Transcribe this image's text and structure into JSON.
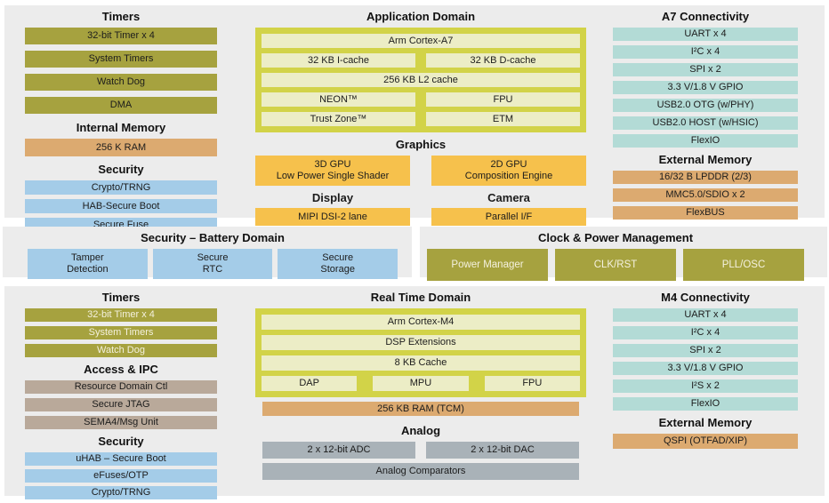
{
  "colors": {
    "panel_bg": "#ececec",
    "olive": "#a6a23f",
    "memory": "#dcaa70",
    "blue": "#a4cce8",
    "teal": "#b3dbd6",
    "lime": "#d2d348",
    "pale": "#ecedc6",
    "graphics_orange": "#f6c14c",
    "tan": "#b9a99a",
    "gray": "#a9b2b8",
    "white_text": "#f4f1de"
  },
  "panels": {
    "top_left": {
      "sections": [
        {
          "name": "timers",
          "heading": "Timers",
          "rows": [
            {
              "cells": [
                {
                  "text": "32-bit Timer x 4",
                  "style": "olive"
                }
              ]
            },
            {
              "cells": [
                {
                  "text": "System Timers",
                  "style": "olive"
                }
              ]
            },
            {
              "cells": [
                {
                  "text": "Watch Dog",
                  "style": "olive"
                }
              ]
            },
            {
              "cells": [
                {
                  "text": "DMA",
                  "style": "olive"
                }
              ]
            }
          ]
        },
        {
          "name": "internal-memory",
          "heading": "Internal Memory",
          "rows": [
            {
              "cells": [
                {
                  "text": "256 K RAM",
                  "style": "memory"
                }
              ]
            }
          ]
        },
        {
          "name": "security",
          "heading": "Security",
          "rows": [
            {
              "cells": [
                {
                  "text": "Crypto/TRNG",
                  "style": "blue"
                }
              ]
            },
            {
              "cells": [
                {
                  "text": "HAB-Secure Boot",
                  "style": "blue"
                }
              ]
            },
            {
              "cells": [
                {
                  "text": "Secure Fuse",
                  "style": "blue"
                }
              ]
            }
          ]
        }
      ]
    },
    "top_mid": {
      "sections": [
        {
          "name": "application-domain",
          "heading": "Application Domain",
          "domain": true,
          "rows": [
            {
              "cells": [
                {
                  "text": "Arm Cortex-A7",
                  "style": "pale"
                }
              ]
            },
            {
              "cells": [
                {
                  "text": "32 KB I-cache",
                  "style": "pale"
                },
                {
                  "text": "32 KB D-cache",
                  "style": "pale"
                }
              ]
            },
            {
              "cells": [
                {
                  "text": "256 KB L2 cache",
                  "style": "pale"
                }
              ]
            },
            {
              "cells": [
                {
                  "text": "NEON™",
                  "style": "pale"
                },
                {
                  "text": "FPU",
                  "style": "pale"
                }
              ]
            },
            {
              "cells": [
                {
                  "text": "Trust Zone™",
                  "style": "pale"
                },
                {
                  "text": "ETM",
                  "style": "pale"
                }
              ]
            }
          ]
        },
        {
          "name": "graphics",
          "heading": "Graphics",
          "rows": [
            {
              "cells": [
                {
                  "lines": [
                    "3D GPU",
                    "Low Power Single Shader"
                  ],
                  "style": "graphics"
                },
                {
                  "lines": [
                    "2D GPU",
                    "Composition Engine"
                  ],
                  "style": "graphics"
                }
              ]
            }
          ]
        },
        {
          "name": "display-camera",
          "heading": "",
          "rows": [
            {
              "subheads": true,
              "cells": [
                {
                  "text": "Display",
                  "style": "subhead"
                },
                {
                  "text": "Camera",
                  "style": "subhead"
                }
              ]
            },
            {
              "cells": [
                {
                  "text": "MIPI DSI-2 lane",
                  "style": "graphics"
                },
                {
                  "text": "Parallel I/F",
                  "style": "graphics"
                }
              ]
            }
          ]
        }
      ]
    },
    "top_right": {
      "sections": [
        {
          "name": "a7-connectivity",
          "heading": "A7 Connectivity",
          "rows": [
            {
              "cells": [
                {
                  "text": "UART x 4",
                  "style": "teal"
                }
              ]
            },
            {
              "cells": [
                {
                  "text": "I²C x 4",
                  "style": "teal"
                }
              ]
            },
            {
              "cells": [
                {
                  "text": "SPI x 2",
                  "style": "teal"
                }
              ]
            },
            {
              "cells": [
                {
                  "text": "3.3 V/1.8 V GPIO",
                  "style": "teal"
                }
              ]
            },
            {
              "cells": [
                {
                  "text": "USB2.0 OTG (w/PHY)",
                  "style": "teal"
                }
              ]
            },
            {
              "cells": [
                {
                  "text": "USB2.0 HOST (w/HSIC)",
                  "style": "teal"
                }
              ]
            },
            {
              "cells": [
                {
                  "text": "FlexIO",
                  "style": "teal"
                }
              ]
            }
          ]
        },
        {
          "name": "external-memory",
          "heading": "External Memory",
          "rows": [
            {
              "cells": [
                {
                  "text": "16/32 B LPDDR (2/3)",
                  "style": "memory"
                }
              ]
            },
            {
              "cells": [
                {
                  "text": "MMC5.0/SDIO x 2",
                  "style": "memory"
                }
              ]
            },
            {
              "cells": [
                {
                  "text": "FlexBUS",
                  "style": "memory"
                }
              ]
            }
          ]
        }
      ]
    },
    "mid_left": {
      "sections": [
        {
          "name": "security-battery",
          "heading": "Security – Battery Domain",
          "rows": [
            {
              "cells": [
                {
                  "lines": [
                    "Tamper",
                    "Detection"
                  ],
                  "style": "blue"
                },
                {
                  "lines": [
                    "Secure",
                    "RTC"
                  ],
                  "style": "blue"
                },
                {
                  "lines": [
                    "Secure",
                    "Storage"
                  ],
                  "style": "blue"
                }
              ]
            }
          ]
        }
      ]
    },
    "mid_right": {
      "sections": [
        {
          "name": "clock-power",
          "heading": "Clock & Power Management",
          "rows": [
            {
              "cells": [
                {
                  "text": "Power Manager",
                  "style": "olive_white"
                },
                {
                  "text": "CLK/RST",
                  "style": "olive_white"
                },
                {
                  "text": "PLL/OSC",
                  "style": "olive_white"
                }
              ]
            }
          ]
        }
      ]
    },
    "bottom_left": {
      "sections": [
        {
          "name": "timers-m4",
          "heading": "Timers",
          "rows": [
            {
              "cells": [
                {
                  "text": "32-bit Timer x 4",
                  "style": "olive_white"
                }
              ]
            },
            {
              "cells": [
                {
                  "text": "System Timers",
                  "style": "olive_white"
                }
              ]
            },
            {
              "cells": [
                {
                  "text": "Watch Dog",
                  "style": "olive_white"
                }
              ]
            }
          ]
        },
        {
          "name": "access-ipc",
          "heading": "Access & IPC",
          "rows": [
            {
              "cells": [
                {
                  "text": "Resource Domain Ctl",
                  "style": "tan"
                }
              ]
            },
            {
              "cells": [
                {
                  "text": "Secure JTAG",
                  "style": "tan"
                }
              ]
            },
            {
              "cells": [
                {
                  "text": "SEMA4/Msg Unit",
                  "style": "tan"
                }
              ]
            }
          ]
        },
        {
          "name": "security-m4",
          "heading": "Security",
          "rows": [
            {
              "cells": [
                {
                  "text": "uHAB – Secure Boot",
                  "style": "blue"
                }
              ]
            },
            {
              "cells": [
                {
                  "text": "eFuses/OTP",
                  "style": "blue"
                }
              ]
            },
            {
              "cells": [
                {
                  "text": "Crypto/TRNG",
                  "style": "blue"
                }
              ]
            }
          ]
        }
      ]
    },
    "bottom_mid": {
      "sections": [
        {
          "name": "real-time-domain",
          "heading": "Real Time Domain",
          "domain": true,
          "rows": [
            {
              "cells": [
                {
                  "text": "Arm Cortex-M4",
                  "style": "pale"
                }
              ]
            },
            {
              "cells": [
                {
                  "text": "DSP Extensions",
                  "style": "pale"
                }
              ]
            },
            {
              "cells": [
                {
                  "text": "8 KB Cache",
                  "style": "pale"
                }
              ]
            },
            {
              "cells": [
                {
                  "text": "DAP",
                  "style": "pale"
                },
                {
                  "text": "MPU",
                  "style": "pale"
                },
                {
                  "text": "FPU",
                  "style": "pale"
                }
              ]
            }
          ]
        },
        {
          "name": "ram-tcm",
          "heading": "",
          "rows": [
            {
              "cells": [
                {
                  "text": "256 KB RAM (TCM)",
                  "style": "memory"
                }
              ]
            }
          ]
        },
        {
          "name": "analog",
          "heading": "Analog",
          "rows": [
            {
              "cells": [
                {
                  "text": "2 x 12-bit ADC",
                  "style": "gray"
                },
                {
                  "text": "2 x 12-bit DAC",
                  "style": "gray"
                }
              ]
            },
            {
              "cells": [
                {
                  "text": "Analog Comparators",
                  "style": "gray"
                }
              ]
            }
          ]
        }
      ]
    },
    "bottom_right": {
      "sections": [
        {
          "name": "m4-connectivity",
          "heading": "M4 Connectivity",
          "rows": [
            {
              "cells": [
                {
                  "text": "UART x 4",
                  "style": "teal"
                }
              ]
            },
            {
              "cells": [
                {
                  "text": "I²C x 4",
                  "style": "teal"
                }
              ]
            },
            {
              "cells": [
                {
                  "text": "SPI x 2",
                  "style": "teal"
                }
              ]
            },
            {
              "cells": [
                {
                  "text": "3.3 V/1.8 V GPIO",
                  "style": "teal"
                }
              ]
            },
            {
              "cells": [
                {
                  "text": "I²S x 2",
                  "style": "teal"
                }
              ]
            },
            {
              "cells": [
                {
                  "text": "FlexIO",
                  "style": "teal"
                }
              ]
            }
          ]
        },
        {
          "name": "external-memory-m4",
          "heading": "External Memory",
          "rows": [
            {
              "cells": [
                {
                  "text": "QSPI (OTFAD/XIP)",
                  "style": "memory"
                }
              ]
            }
          ]
        }
      ]
    }
  }
}
